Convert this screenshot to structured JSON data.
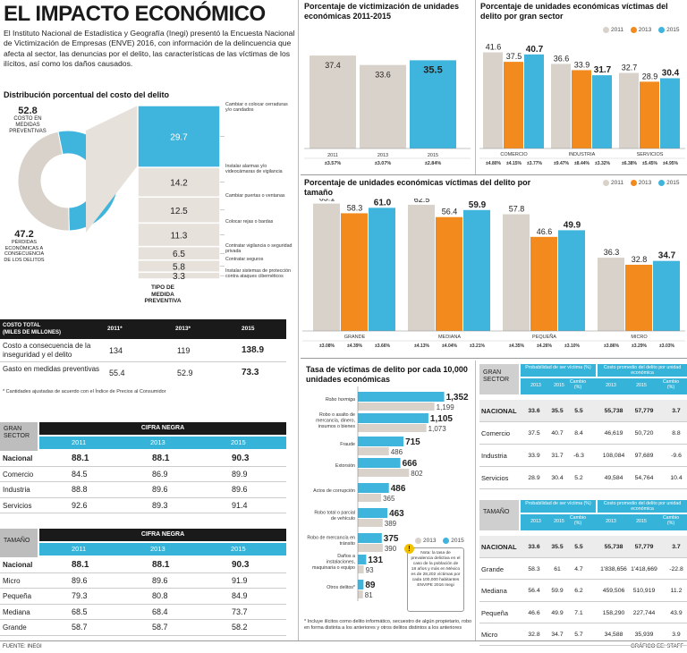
{
  "header": {
    "title": "EL IMPACTO ECONÓMICO",
    "intro": "El Instituto Nacional de Estadística y Geografía (Inegi) presentó la Encuesta Nacional de Victimización de Empresas (ENVE) 2016, con información de la delincuencia que afecta al sector, las denuncias por el delito, las características de las víctimas de los ilícitos, así como los daños causados."
  },
  "distribution": {
    "title": "Distribución porcentual del costo del delito",
    "donut_prevent_value": "52.8",
    "donut_prevent_label": "COSTO EN MEDIDAS PREVENTIVAS",
    "donut_loss_value": "47.2",
    "donut_loss_label": "PÉRDIDAS ECONÓMICAS A CONSECUENCIA DE LOS DELITOS",
    "stack_title": "TIPO DE MEDIDA PREVENTIVA",
    "stack": [
      {
        "value": "29.7",
        "label": "Cambiar o colocar cerraduras y/o candados",
        "v": 29.7
      },
      {
        "value": "14.2",
        "label": "Instalar alarmas y/o videocámaras de vigilancia",
        "v": 14.2
      },
      {
        "value": "12.5",
        "label": "Cambiar puertas o ventanas",
        "v": 12.5
      },
      {
        "value": "11.3",
        "label": "Colocar rejas o bardas",
        "v": 11.3
      },
      {
        "value": "6.5",
        "label": "Contratar vigilancia o seguridad privada",
        "v": 6.5
      },
      {
        "value": "5.8",
        "label": "Contratar seguros",
        "v": 5.8
      },
      {
        "value": "3.3",
        "label": "Instalar sistemas de protección contra ataques cibernéticos",
        "v": 3.3
      }
    ]
  },
  "cost_table": {
    "h0": "COSTO TOTAL",
    "h0b": "(MILES DE MILLONES)",
    "h1": "2011*",
    "h2": "2013*",
    "h3": "2015",
    "rows": [
      {
        "label": "Costo a consecuencia de la inseguridad y el delito",
        "a": "134",
        "b": "119",
        "c": "138.9"
      },
      {
        "label": "Gasto en medidas preventivas",
        "a": "55.4",
        "b": "52.9",
        "c": "73.3"
      }
    ],
    "note": "* Cantidades ajustadas de acuerdo con el Índice de Precios al Consumidor"
  },
  "cifra_sector": {
    "corner": "GRAN SECTOR",
    "head": "CIFRA NEGRA",
    "years": [
      "2011",
      "2013",
      "2015"
    ],
    "rows": [
      {
        "label": "Nacional",
        "a": "88.1",
        "b": "88.1",
        "c": "90.3"
      },
      {
        "label": "Comercio",
        "a": "84.5",
        "b": "86.9",
        "c": "89.9"
      },
      {
        "label": "Industria",
        "a": "88.8",
        "b": "89.6",
        "c": "89.6"
      },
      {
        "label": "Servicios",
        "a": "92.6",
        "b": "89.3",
        "c": "91.4"
      }
    ]
  },
  "cifra_size": {
    "corner": "TAMAÑO",
    "head": "CIFRA NEGRA",
    "years": [
      "2011",
      "2013",
      "2015"
    ],
    "rows": [
      {
        "label": "Nacional",
        "a": "88.1",
        "b": "88.1",
        "c": "90.3"
      },
      {
        "label": "Micro",
        "a": "89.6",
        "b": "89.6",
        "c": "91.9"
      },
      {
        "label": "Pequeña",
        "a": "79.3",
        "b": "80.8",
        "c": "84.9"
      },
      {
        "label": "Mediana",
        "a": "68.5",
        "b": "68.4",
        "c": "73.7"
      },
      {
        "label": "Grande",
        "a": "58.7",
        "b": "58.7",
        "c": "58.2"
      }
    ]
  },
  "footer": {
    "source": "FUENTE: INEGI",
    "credit": "GRÁFICO EE: STAFF"
  },
  "legend": {
    "y2011": "2011",
    "y2013": "2013",
    "y2015": "2015"
  },
  "colors": {
    "gray": "#d9d2ca",
    "orange": "#f28a1e",
    "blue": "#3fb4dc",
    "dark": "#1a1a1a"
  },
  "chart_data": [
    {
      "id": "victimization",
      "type": "bar",
      "title": "Porcentaje de victimización de unidades económicas 2011-2015",
      "categories": [
        "2011",
        "2013",
        "2015"
      ],
      "values": [
        37.4,
        33.6,
        35.5
      ],
      "labels": [
        "37.4",
        "33.6",
        "35.5"
      ],
      "pcts": [
        "±3.57%",
        "±3.07%",
        "±2.84%"
      ],
      "ylim": [
        0,
        45
      ]
    },
    {
      "id": "sector",
      "type": "bar",
      "title": "Porcentaje de unidades económicas víctimas del delito por gran sector",
      "categories": [
        "COMERCIO",
        "INDUSTRIA",
        "SERVICIOS"
      ],
      "series": [
        {
          "name": "2011",
          "values": [
            41.6,
            36.6,
            32.7
          ],
          "labels": [
            "41.6",
            "36.6",
            "32.7"
          ]
        },
        {
          "name": "2013",
          "values": [
            37.5,
            33.9,
            28.9
          ],
          "labels": [
            "37.5",
            "33.9",
            "28.9"
          ]
        },
        {
          "name": "2015",
          "values": [
            40.7,
            31.7,
            30.4
          ],
          "labels": [
            "40.7",
            "31.7",
            "30.4"
          ]
        }
      ],
      "pcts": [
        "±4.80%",
        "±4.15%",
        "±3.77%",
        "±9.47%",
        "±8.44%",
        "±3.32%",
        "±6.38%",
        "±5.45%",
        "±4.95%"
      ],
      "ylim": [
        0,
        48
      ]
    },
    {
      "id": "size",
      "type": "bar",
      "title": "Porcentaje de unidades económicas víctimas del delito por tamaño",
      "categories": [
        "GRANDE",
        "MEDIANA",
        "PEQUEÑA",
        "MICRO"
      ],
      "series": [
        {
          "name": "2011",
          "values": [
            63.1,
            62.5,
            57.8,
            36.3
          ],
          "labels": [
            "63.1",
            "62.5",
            "57.8",
            "36.3"
          ]
        },
        {
          "name": "2013",
          "values": [
            58.3,
            56.4,
            46.6,
            32.8
          ],
          "labels": [
            "58.3",
            "56.4",
            "46.6",
            "32.8"
          ]
        },
        {
          "name": "2015",
          "values": [
            61.0,
            59.9,
            49.9,
            34.7
          ],
          "labels": [
            "61.0",
            "59.9",
            "49.9",
            "34.7"
          ]
        }
      ],
      "pcts": [
        "±3.08%",
        "±4.39%",
        "±3.66%",
        "±4.13%",
        "±4.04%",
        "±3.21%",
        "±4.35%",
        "±4.26%",
        "±3.10%",
        "±3.86%",
        "±3.29%",
        "±3.03%"
      ],
      "ylim": [
        0,
        70
      ]
    },
    {
      "id": "rate",
      "type": "bar",
      "title": "Tasa de víctimas de delito por cada 10,000 unidades económicas",
      "categories": [
        "Robo hormiga",
        "Robo o asalto de mercancía, dinero, insumos o bienes",
        "Fraude",
        "Extorsión",
        "Actos de corrupción",
        "Robo total o parcial de vehículo",
        "Robo de mercancía en tránsito",
        "Daños a instalaciones, maquinaria o equipo",
        "Otros delitos*"
      ],
      "series": [
        {
          "name": "2013",
          "values": [
            1199,
            1073,
            486,
            802,
            365,
            389,
            390,
            93,
            81
          ],
          "labels": [
            "1,199",
            "1,073",
            "486",
            "802",
            "365",
            "389",
            "390",
            "93",
            "81"
          ]
        },
        {
          "name": "2015",
          "values": [
            1352,
            1105,
            715,
            666,
            486,
            463,
            375,
            131,
            89
          ],
          "labels": [
            "1,352",
            "1,105",
            "715",
            "666",
            "486",
            "463",
            "375",
            "131",
            "89"
          ]
        }
      ],
      "xlim": [
        0,
        1400
      ],
      "callout": "Nota: la tasa de prevalencia delictiva en el caso de la población de 18 años y más en México es de 28,202 víctimas por cada 100,000 habitantes ENVIPE 2016 Inegi",
      "note": "* Incluye ilícitos como delito informático, secuestro de algún propietario, robo en forma distinta a los anteriores y otros delitos distintos a los anteriores"
    }
  ],
  "prob_sector": {
    "corner": "GRAN SECTOR",
    "h_prob": "Probabilidad de ser víctima (%)",
    "h_cost": "Costo promedio del delito por unidad económica",
    "sub": [
      "2013",
      "2015",
      "Cambio (%)",
      "2013",
      "2015",
      "Cambio (%)"
    ],
    "rows": [
      {
        "label": "NACIONAL",
        "v": [
          "33.6",
          "35.5",
          "5.5",
          "55,738",
          "57,779",
          "3.7"
        ]
      },
      {
        "label": "Comercio",
        "v": [
          "37.5",
          "40.7",
          "8.4",
          "46,619",
          "50,720",
          "8.8"
        ]
      },
      {
        "label": "Industria",
        "v": [
          "33.9",
          "31.7",
          "-6.3",
          "108,084",
          "97,689",
          "-9.6"
        ]
      },
      {
        "label": "Servicios",
        "v": [
          "28.9",
          "30.4",
          "5.2",
          "49,584",
          "54,764",
          "10.4"
        ]
      }
    ]
  },
  "prob_size": {
    "corner": "TAMAÑO",
    "h_prob": "Probabilidad de ser víctima (%)",
    "h_cost": "Costo promedio del delito por unidad económica",
    "sub": [
      "2013",
      "2015",
      "Cambio (%)",
      "2013",
      "2015",
      "Cambio (%)"
    ],
    "rows": [
      {
        "label": "NACIONAL",
        "v": [
          "33.6",
          "35.5",
          "5.5",
          "55,738",
          "57,779",
          "3.7"
        ]
      },
      {
        "label": "Grande",
        "v": [
          "58.3",
          "61",
          "4.7",
          "1'838,656",
          "1'418,669",
          "-22.8"
        ]
      },
      {
        "label": "Mediana",
        "v": [
          "56.4",
          "59.9",
          "6.2",
          "459,506",
          "510,919",
          "11.2"
        ]
      },
      {
        "label": "Pequeña",
        "v": [
          "46.6",
          "49.9",
          "7.1",
          "158,290",
          "227,744",
          "43.9"
        ]
      },
      {
        "label": "Micro",
        "v": [
          "32.8",
          "34.7",
          "5.7",
          "34,588",
          "35,939",
          "3.9"
        ]
      }
    ]
  }
}
